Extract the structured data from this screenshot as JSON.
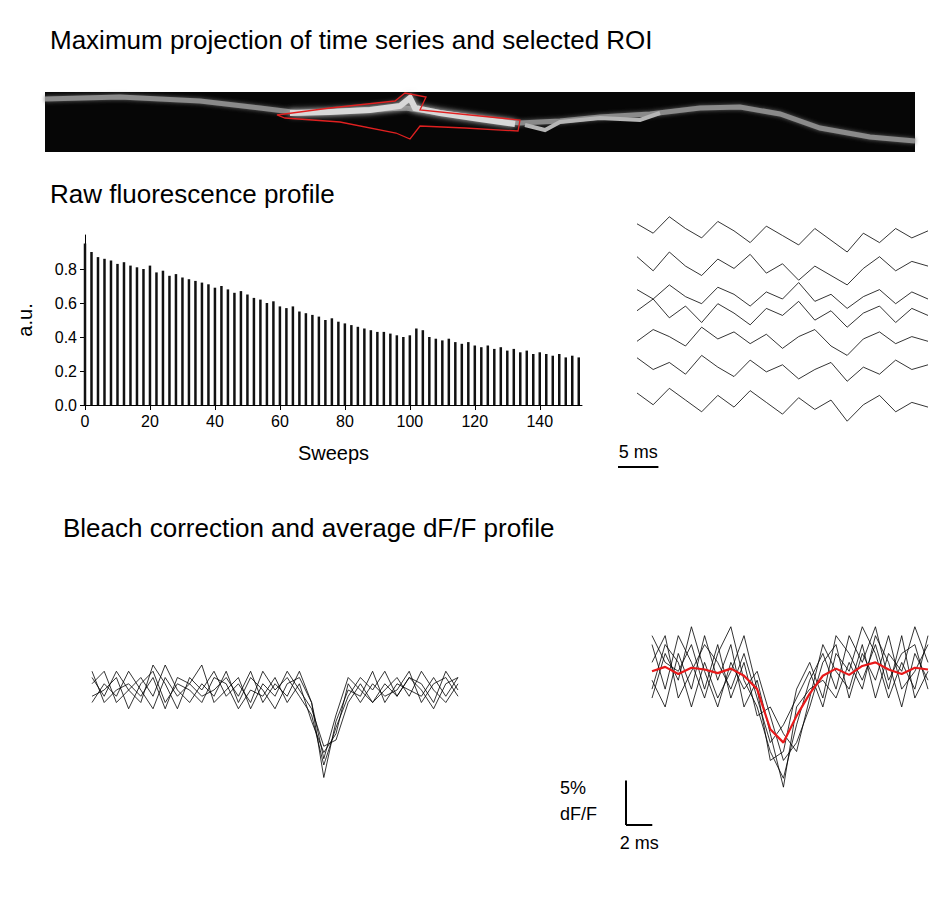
{
  "headings": [
    "Maximum projection of time series and selected ROI",
    "Raw fluorescence profile",
    "Bleach correction and average dF/F profile"
  ],
  "chart_data": [
    {
      "type": "bar",
      "x": [
        0,
        2,
        4,
        6,
        8,
        10,
        12,
        14,
        16,
        18,
        20,
        22,
        24,
        26,
        28,
        30,
        32,
        34,
        36,
        38,
        40,
        42,
        44,
        46,
        48,
        50,
        52,
        54,
        56,
        58,
        60,
        62,
        64,
        66,
        68,
        70,
        72,
        74,
        76,
        78,
        80,
        82,
        84,
        86,
        88,
        90,
        92,
        94,
        96,
        98,
        100,
        102,
        104,
        106,
        108,
        110,
        112,
        114,
        116,
        118,
        120,
        122,
        124,
        126,
        128,
        130,
        132,
        134,
        136,
        138,
        140,
        142,
        144,
        146,
        148,
        150,
        152
      ],
      "values": [
        0.95,
        0.9,
        0.87,
        0.86,
        0.85,
        0.83,
        0.84,
        0.82,
        0.81,
        0.8,
        0.82,
        0.78,
        0.79,
        0.76,
        0.77,
        0.75,
        0.74,
        0.73,
        0.72,
        0.71,
        0.69,
        0.7,
        0.68,
        0.66,
        0.67,
        0.65,
        0.63,
        0.62,
        0.6,
        0.61,
        0.58,
        0.57,
        0.58,
        0.55,
        0.54,
        0.53,
        0.52,
        0.5,
        0.51,
        0.49,
        0.48,
        0.47,
        0.46,
        0.45,
        0.44,
        0.43,
        0.43,
        0.42,
        0.41,
        0.4,
        0.41,
        0.45,
        0.44,
        0.4,
        0.39,
        0.38,
        0.39,
        0.37,
        0.36,
        0.37,
        0.35,
        0.34,
        0.35,
        0.33,
        0.34,
        0.32,
        0.33,
        0.31,
        0.32,
        0.3,
        0.31,
        0.3,
        0.29,
        0.3,
        0.28,
        0.29,
        0.28
      ],
      "color": "#111111",
      "xlabel": "Sweeps",
      "ylabel": "a.u.",
      "xlim": [
        0,
        153
      ],
      "xticks": [
        0,
        20,
        40,
        60,
        80,
        100,
        120,
        140
      ],
      "ylim": [
        0,
        1.0
      ],
      "yticks": [
        {
          "value": 0,
          "label": "0.0"
        },
        0.2,
        0.4,
        0.6,
        0.8
      ],
      "grid": false
    },
    {
      "type": "line",
      "x": [
        0,
        2,
        4,
        6,
        8,
        10,
        12,
        14,
        16,
        18,
        20,
        22,
        24,
        26,
        28,
        30,
        32,
        34,
        36
      ],
      "series": [
        {
          "color": "#000000",
          "values": [
            0.92,
            0.88,
            0.95,
            0.9,
            0.86,
            0.93,
            0.89,
            0.84,
            0.91,
            0.87,
            0.83,
            0.9,
            0.85,
            0.8,
            0.88,
            0.84,
            0.9,
            0.86,
            0.89
          ]
        },
        {
          "color": "#000000",
          "values": [
            0.78,
            0.72,
            0.8,
            0.74,
            0.7,
            0.77,
            0.73,
            0.79,
            0.71,
            0.75,
            0.68,
            0.74,
            0.7,
            0.66,
            0.73,
            0.78,
            0.72,
            0.76,
            0.74
          ]
        },
        {
          "color": "#000000",
          "values": [
            0.64,
            0.6,
            0.66,
            0.61,
            0.58,
            0.65,
            0.62,
            0.57,
            0.63,
            0.6,
            0.67,
            0.59,
            0.62,
            0.56,
            0.61,
            0.64,
            0.58,
            0.63,
            0.6
          ]
        },
        {
          "color": "#000000",
          "values": [
            0.55,
            0.6,
            0.52,
            0.57,
            0.5,
            0.58,
            0.54,
            0.49,
            0.56,
            0.53,
            0.59,
            0.51,
            0.55,
            0.48,
            0.54,
            0.57,
            0.5,
            0.56,
            0.53
          ]
        },
        {
          "color": "#000000",
          "values": [
            0.42,
            0.47,
            0.44,
            0.4,
            0.48,
            0.43,
            0.46,
            0.41,
            0.45,
            0.39,
            0.44,
            0.47,
            0.4,
            0.36,
            0.43,
            0.46,
            0.41,
            0.44,
            0.42
          ]
        },
        {
          "color": "#000000",
          "values": [
            0.35,
            0.3,
            0.33,
            0.28,
            0.36,
            0.31,
            0.27,
            0.34,
            0.29,
            0.32,
            0.26,
            0.3,
            0.33,
            0.25,
            0.31,
            0.28,
            0.34,
            0.3,
            0.32
          ]
        },
        {
          "color": "#000000",
          "values": [
            0.2,
            0.15,
            0.22,
            0.17,
            0.12,
            0.19,
            0.14,
            0.21,
            0.16,
            0.11,
            0.18,
            0.13,
            0.17,
            0.08,
            0.15,
            0.19,
            0.12,
            0.16,
            0.14
          ]
        }
      ],
      "xlim": [
        0,
        36
      ],
      "ylim": [
        0,
        1
      ],
      "tick_labels": false,
      "scale_bar": {
        "x": 5,
        "x_label": "5 ms"
      }
    },
    {
      "type": "line",
      "x": [
        0,
        2,
        4,
        6,
        8,
        10,
        12,
        14,
        16,
        18,
        20,
        22,
        24,
        26,
        28,
        30,
        32,
        34,
        36,
        38,
        40,
        42,
        44,
        46,
        48,
        50,
        52,
        54,
        56,
        58,
        60
      ],
      "series": [
        {
          "color": "#000000",
          "values": [
            2,
            -1,
            3,
            0,
            -2,
            4,
            1,
            -3,
            2,
            0,
            3,
            -1,
            1,
            -2,
            3,
            0,
            2,
            -1,
            -4,
            -12,
            -6,
            -1,
            2,
            0,
            3,
            -1,
            2,
            1,
            -2,
            3,
            0
          ]
        },
        {
          "color": "#000000",
          "values": [
            -2,
            1,
            -1,
            3,
            0,
            -3,
            2,
            -1,
            1,
            4,
            -2,
            0,
            2,
            -3,
            1,
            -1,
            3,
            0,
            -3,
            -9,
            -8,
            -2,
            1,
            -2,
            0,
            2,
            -1,
            3,
            0,
            -2,
            1
          ]
        },
        {
          "color": "#000000",
          "values": [
            1,
            3,
            -2,
            0,
            2,
            -1,
            4,
            0,
            -2,
            1,
            -1,
            3,
            -2,
            2,
            0,
            -3,
            1,
            2,
            -2,
            -14,
            -5,
            0,
            -1,
            3,
            -2,
            1,
            0,
            -1,
            2,
            -1,
            2
          ]
        },
        {
          "color": "#000000",
          "values": [
            -1,
            0,
            2,
            -3,
            1,
            3,
            -2,
            1,
            0,
            -2,
            2,
            1,
            -3,
            0,
            -1,
            2,
            -2,
            1,
            -5,
            -10,
            -7,
            1,
            -2,
            1,
            -1,
            0,
            3,
            -2,
            1,
            2,
            -1
          ]
        },
        {
          "color": "#000000",
          "values": [
            3,
            -2,
            0,
            1,
            -1,
            2,
            -3,
            2,
            1,
            -1,
            0,
            2,
            -1,
            3,
            -2,
            1,
            -1,
            3,
            -2,
            -11,
            -4,
            2,
            0,
            -2,
            1,
            -1,
            2,
            0,
            -3,
            1,
            2
          ]
        }
      ],
      "xlim": [
        0,
        60
      ],
      "ylim": [
        -16,
        8
      ],
      "tick_labels": false
    },
    {
      "type": "line",
      "x": [
        0,
        1,
        2,
        3,
        4,
        5,
        6,
        7,
        8,
        9,
        10,
        11,
        12,
        13,
        14,
        15,
        16,
        17,
        18,
        19,
        20,
        21
      ],
      "series": [
        {
          "color": "#000000",
          "values": [
            3,
            -2,
            4,
            1,
            -3,
            2,
            5,
            -1,
            -4,
            -9,
            -12,
            -6,
            -1,
            2,
            -2,
            4,
            1,
            5,
            -1,
            2,
            3,
            -2
          ]
        },
        {
          "color": "#000000",
          "values": [
            -3,
            2,
            -1,
            5,
            0,
            -4,
            1,
            -2,
            0,
            -5,
            -10,
            -8,
            -4,
            1,
            3,
            -3,
            2,
            -1,
            4,
            -2,
            0,
            3
          ]
        },
        {
          "color": "#000000",
          "values": [
            1,
            4,
            -3,
            0,
            3,
            1,
            -2,
            2,
            -3,
            -8,
            -6,
            -3,
            0,
            -4,
            2,
            0,
            5,
            2,
            -3,
            1,
            -2,
            4
          ]
        },
        {
          "color": "#000000",
          "values": [
            -1,
            -4,
            2,
            -2,
            4,
            -1,
            3,
            -4,
            -1,
            -7,
            -13,
            -4,
            -2,
            -1,
            -3,
            1,
            -2,
            4,
            1,
            -4,
            2,
            -1
          ]
        },
        {
          "color": "#000000",
          "values": [
            4,
            1,
            0,
            3,
            -2,
            3,
            -3,
            1,
            -5,
            -4,
            -7,
            -9,
            -3,
            3,
            0,
            -2,
            3,
            -3,
            2,
            0,
            5,
            1
          ]
        },
        {
          "color": "#000000",
          "values": [
            -2,
            3,
            1,
            -4,
            1,
            -3,
            0,
            4,
            -2,
            -10,
            -9,
            -2,
            1,
            -3,
            4,
            2,
            -1,
            3,
            -2,
            4,
            -3,
            0
          ]
        },
        {
          "color": "#e8191a",
          "values": [
            0,
            0.5,
            -0.3,
            0.4,
            0.2,
            -0.2,
            0.3,
            -0.5,
            -2,
            -6.5,
            -8,
            -5,
            -2.5,
            -0.5,
            0.3,
            -0.4,
            0.6,
            1,
            0.2,
            -0.3,
            0.4,
            0.2
          ]
        }
      ],
      "xlim": [
        0,
        21
      ],
      "ylim": [
        -15,
        8
      ],
      "tick_labels": false,
      "scale_bar": {
        "x": 2,
        "x_label": "2 ms",
        "y": 5,
        "y_label": [
          "5%",
          "dF/F"
        ]
      }
    }
  ]
}
